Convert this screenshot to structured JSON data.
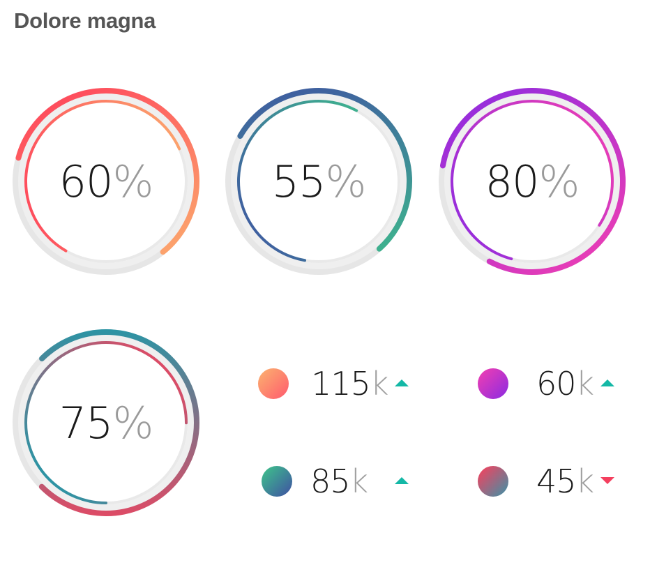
{
  "title": "Dolore magna",
  "gauges": [
    {
      "value": "60",
      "unit": "%",
      "outer_pct": 60,
      "inner_pct": 60,
      "colors": [
        "#fbb36f",
        "#ff3d5a"
      ]
    },
    {
      "value": "55",
      "unit": "%",
      "outer_pct": 55,
      "inner_pct": 55,
      "colors": [
        "#3ec68a",
        "#3f4fa3"
      ]
    },
    {
      "value": "80",
      "unit": "%",
      "outer_pct": 80,
      "inner_pct": 80,
      "colors": [
        "#f43fb0",
        "#8a2be2"
      ]
    },
    {
      "value": "75",
      "unit": "%",
      "outer_pct": 75,
      "inner_pct": 75,
      "colors": [
        "#ff3d5a",
        "#0aa2b0"
      ]
    }
  ],
  "stats": [
    {
      "value": "115",
      "unit": "k",
      "trend": "up",
      "colors": [
        "#fbb36f",
        "#ff5a6e"
      ]
    },
    {
      "value": "60",
      "unit": "k",
      "trend": "up",
      "colors": [
        "#f43fb0",
        "#8a2be2"
      ]
    },
    {
      "value": "85",
      "unit": "k",
      "trend": "up",
      "colors": [
        "#3ec68a",
        "#3f4fa3"
      ]
    },
    {
      "value": "45",
      "unit": "k",
      "trend": "down",
      "colors": [
        "#ff3d5a",
        "#3a93a8"
      ]
    }
  ],
  "trend_icons": {
    "up": "triangle-up-icon",
    "down": "triangle-down-icon"
  }
}
